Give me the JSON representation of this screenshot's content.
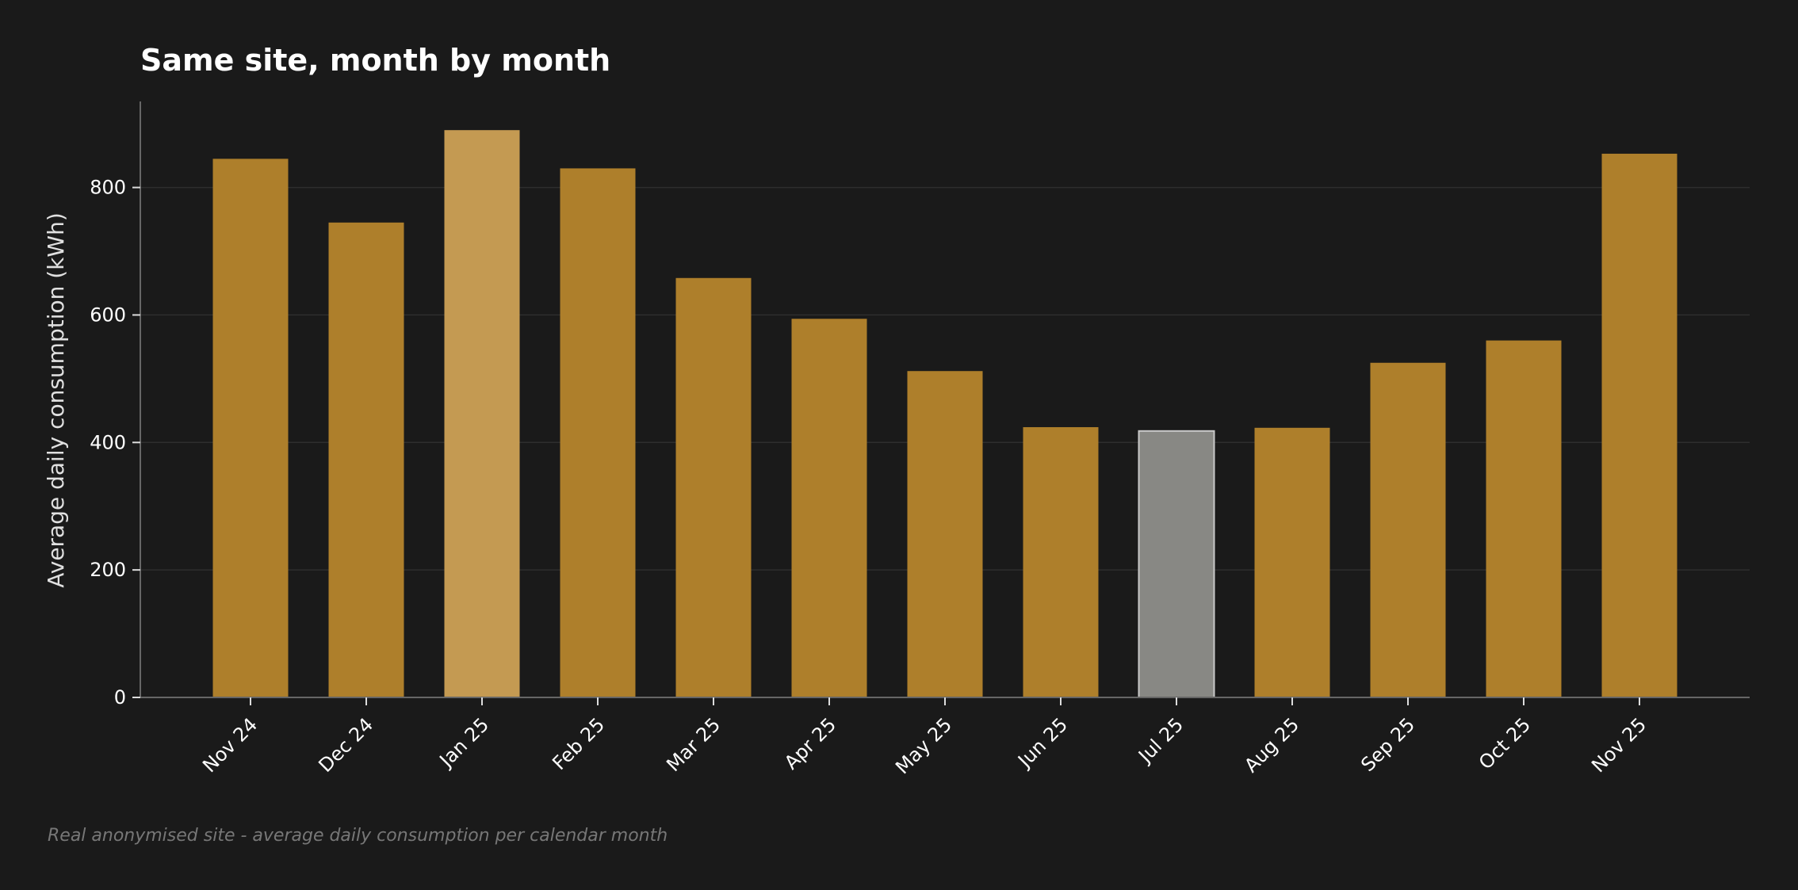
{
  "chart_data": {
    "type": "bar",
    "title": "Same site, month by month",
    "xlabel": "",
    "ylabel": "Average daily consumption (kWh)",
    "footnote": "Real anonymised site - average daily consumption per calendar month",
    "categories": [
      "Nov 24",
      "Dec 24",
      "Jan 25",
      "Feb 25",
      "Mar 25",
      "Apr 25",
      "May 25",
      "Jun 25",
      "Jul 25",
      "Aug 25",
      "Sep 25",
      "Oct 25",
      "Nov 25"
    ],
    "values": [
      845,
      745,
      890,
      830,
      658,
      594,
      512,
      424,
      418,
      423,
      525,
      560,
      853
    ],
    "highlight": {
      "max_category": "Jan 25",
      "min_category": "Jul 25"
    },
    "ylim": [
      0,
      935
    ],
    "yticks": [
      0,
      200,
      400,
      600,
      800
    ],
    "grid": "horizontal",
    "legend": "none",
    "colors": {
      "background": "#1a1a1a",
      "bar": "#ae7f2b",
      "bar_max": "#c49a52",
      "bar_min": "#888884",
      "bar_min_edge": "#c8c8c8",
      "grid": "#2e2e2e",
      "axis": "#666666"
    }
  }
}
